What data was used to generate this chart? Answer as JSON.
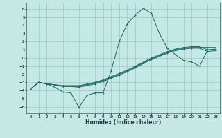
{
  "title": "",
  "xlabel": "Humidex (Indice chaleur)",
  "xlim": [
    -0.5,
    23.5
  ],
  "ylim": [
    -6.8,
    6.8
  ],
  "xticks": [
    0,
    1,
    2,
    3,
    4,
    5,
    6,
    7,
    8,
    9,
    10,
    11,
    12,
    13,
    14,
    15,
    16,
    17,
    18,
    19,
    20,
    21,
    22,
    23
  ],
  "yticks": [
    -6,
    -5,
    -4,
    -3,
    -2,
    -1,
    0,
    1,
    2,
    3,
    4,
    5,
    6
  ],
  "bg_color": "#c5e8e5",
  "grid_color": "#9fcfcb",
  "line_color": "#1a6860",
  "lines": [
    {
      "x": [
        0,
        1,
        2,
        3,
        4,
        5,
        6,
        7,
        8,
        9,
        10,
        11,
        12,
        13,
        14,
        15,
        16,
        17,
        18,
        19,
        20,
        21,
        22,
        23
      ],
      "y": [
        -3.8,
        -3.0,
        -3.2,
        -3.6,
        -4.2,
        -4.3,
        -6.1,
        -4.6,
        -4.3,
        -4.3,
        -1.6,
        2.0,
        4.2,
        5.3,
        6.1,
        5.5,
        3.0,
        1.2,
        0.4,
        -0.3,
        -0.5,
        -1.0,
        1.0,
        1.0
      ]
    },
    {
      "x": [
        0,
        1,
        2,
        3,
        4,
        5,
        6,
        7,
        8,
        9,
        10,
        11,
        12,
        13,
        14,
        15,
        16,
        17,
        18,
        19,
        20,
        21,
        22,
        23
      ],
      "y": [
        -3.8,
        -3.0,
        -3.2,
        -3.3,
        -3.5,
        -3.5,
        -3.5,
        -3.3,
        -3.1,
        -2.8,
        -2.4,
        -2.0,
        -1.6,
        -1.1,
        -0.6,
        -0.1,
        0.3,
        0.7,
        1.0,
        1.2,
        1.3,
        1.3,
        1.3,
        1.3
      ]
    },
    {
      "x": [
        0,
        1,
        2,
        3,
        4,
        5,
        6,
        7,
        8,
        9,
        10,
        11,
        12,
        13,
        14,
        15,
        16,
        17,
        18,
        19,
        20,
        21,
        22,
        23
      ],
      "y": [
        -3.8,
        -3.0,
        -3.2,
        -3.3,
        -3.4,
        -3.4,
        -3.4,
        -3.2,
        -3.0,
        -2.7,
        -2.3,
        -1.9,
        -1.5,
        -1.0,
        -0.5,
        0.0,
        0.4,
        0.8,
        1.1,
        1.3,
        1.4,
        1.4,
        1.0,
        1.1
      ]
    },
    {
      "x": [
        0,
        1,
        2,
        3,
        4,
        5,
        6,
        7,
        8,
        9,
        10,
        11,
        12,
        13,
        14,
        15,
        16,
        17,
        18,
        19,
        20,
        21,
        22,
        23
      ],
      "y": [
        -3.8,
        -3.0,
        -3.2,
        -3.3,
        -3.5,
        -3.5,
        -3.6,
        -3.4,
        -3.2,
        -2.9,
        -2.5,
        -2.1,
        -1.7,
        -1.2,
        -0.7,
        -0.2,
        0.2,
        0.6,
        0.9,
        1.1,
        1.2,
        1.2,
        0.8,
        0.9
      ]
    }
  ]
}
